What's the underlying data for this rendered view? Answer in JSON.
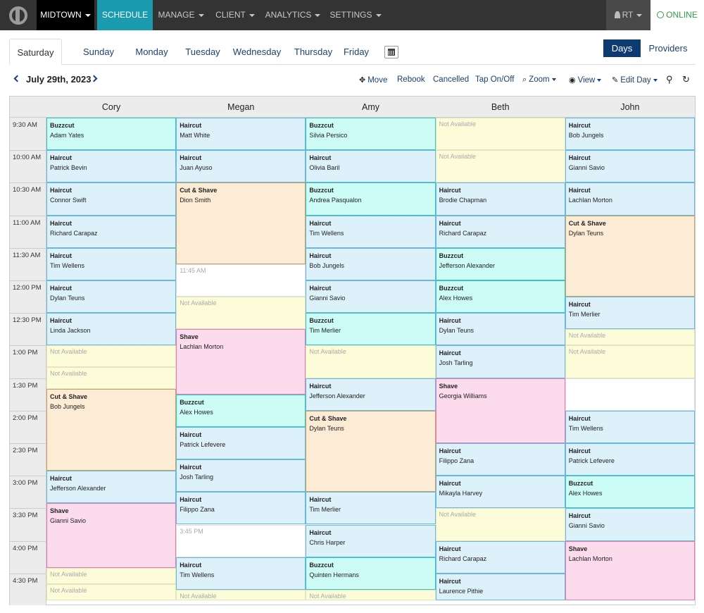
{
  "nav": {
    "location": "MIDTOWN",
    "schedule": "SCHEDULE",
    "manage": "MANAGE",
    "client": "CLIENT",
    "analytics": "ANALYTICS",
    "settings": "SETTINGS",
    "user": "RT",
    "status": "ONLINE"
  },
  "tabs": [
    "Saturday",
    "Sunday",
    "Monday",
    "Tuesday",
    "Wednesday",
    "Thursday",
    "Friday"
  ],
  "view_toggle": {
    "days": "Days",
    "providers": "Providers"
  },
  "date": "July 29th, 2023",
  "actions": {
    "move": "Move",
    "rebook": "Rebook",
    "cancelled": "Cancelled",
    "tap": "Tap On/Off",
    "zoom": "Zoom",
    "view": "View",
    "edit_day": "Edit Day"
  },
  "times": [
    "9:30 AM",
    "10:00 AM",
    "10:30 AM",
    "11:00 AM",
    "11:30 AM",
    "12:00 PM",
    "12:30 PM",
    "1:00 PM",
    "1:30 PM",
    "2:00 PM",
    "2:30 PM",
    "3:00 PM",
    "3:30 PM",
    "4:00 PM",
    "4:30 PM"
  ],
  "labels": {
    "not_available": "Not Available"
  },
  "colors": {
    "haircut": "#dcf1fa",
    "buzzcut": "#ccfcf5",
    "cut_shave": "#fcecd6",
    "shave": "#fcdcec",
    "not_available": "#fdfcd8",
    "accent": "#1a9bb0",
    "online": "#2f9e44"
  },
  "providers": [
    {
      "name": "Cory",
      "slots": [
        {
          "kind": "appt",
          "type": "buzzcut",
          "service": "Buzzcut",
          "client": "Adam Yates",
          "start": "9:30",
          "end": "10:00"
        },
        {
          "kind": "appt",
          "type": "haircut",
          "service": "Haircut",
          "client": "Patrick Bevin",
          "start": "10:00",
          "end": "10:30"
        },
        {
          "kind": "appt",
          "type": "haircut",
          "service": "Haircut",
          "client": "Connor Swift",
          "start": "10:30",
          "end": "11:00"
        },
        {
          "kind": "appt",
          "type": "haircut",
          "service": "Haircut",
          "client": "Richard Carapaz",
          "start": "11:00",
          "end": "11:30"
        },
        {
          "kind": "appt",
          "type": "haircut",
          "service": "Haircut",
          "client": "Tim Wellens",
          "start": "11:30",
          "end": "12:00"
        },
        {
          "kind": "appt",
          "type": "haircut",
          "service": "Haircut",
          "client": "Dylan Teuns",
          "start": "12:00",
          "end": "12:30"
        },
        {
          "kind": "appt",
          "type": "haircut",
          "service": "Haircut",
          "client": "Linda Jackson",
          "start": "12:30",
          "end": "13:00"
        },
        {
          "kind": "na",
          "start": "13:00",
          "end": "13:20"
        },
        {
          "kind": "na",
          "start": "13:20",
          "end": "13:40"
        },
        {
          "kind": "appt",
          "type": "cut",
          "service": "Cut & Shave",
          "client": "Bob Jungels",
          "start": "13:40",
          "end": "14:55"
        },
        {
          "kind": "appt",
          "type": "haircut",
          "service": "Haircut",
          "client": "Jefferson Alexander",
          "start": "14:55",
          "end": "15:25"
        },
        {
          "kind": "appt",
          "type": "shave",
          "service": "Shave",
          "client": "Gianni Savio",
          "start": "15:25",
          "end": "16:25"
        },
        {
          "kind": "na",
          "start": "16:25",
          "end": "16:40"
        },
        {
          "kind": "na",
          "start": "16:40",
          "end": "16:55"
        }
      ]
    },
    {
      "name": "Megan",
      "slots": [
        {
          "kind": "appt",
          "type": "haircut",
          "service": "Haircut",
          "client": "Matt White",
          "start": "9:30",
          "end": "10:00"
        },
        {
          "kind": "appt",
          "type": "haircut",
          "service": "Haircut",
          "client": "Juan Ayuso",
          "start": "10:00",
          "end": "10:30"
        },
        {
          "kind": "appt",
          "type": "cut",
          "service": "Cut & Shave",
          "client": "Dion Smith",
          "start": "10:30",
          "end": "11:45"
        },
        {
          "kind": "open",
          "label": "11:45 AM",
          "start": "11:45",
          "end": "12:15"
        },
        {
          "kind": "na",
          "start": "12:15",
          "end": "12:45"
        },
        {
          "kind": "appt",
          "type": "shave",
          "service": "Shave",
          "client": "Lachlan Morton",
          "start": "12:45",
          "end": "13:45"
        },
        {
          "kind": "appt",
          "type": "buzzcut",
          "service": "Buzzcut",
          "client": "Alex Howes",
          "start": "13:45",
          "end": "14:15"
        },
        {
          "kind": "appt",
          "type": "haircut",
          "service": "Haircut",
          "client": "Patrick Lefevere",
          "start": "14:15",
          "end": "14:45"
        },
        {
          "kind": "appt",
          "type": "haircut",
          "service": "Haircut",
          "client": "Josh Tarling",
          "start": "14:45",
          "end": "15:15"
        },
        {
          "kind": "appt",
          "type": "haircut",
          "service": "Haircut",
          "client": "Filippo Zana",
          "start": "15:15",
          "end": "15:45"
        },
        {
          "kind": "open",
          "label": "3:45 PM",
          "start": "15:45",
          "end": "16:15"
        },
        {
          "kind": "appt",
          "type": "haircut",
          "service": "Haircut",
          "client": "Tim Wellens",
          "start": "16:15",
          "end": "16:45"
        },
        {
          "kind": "na",
          "start": "16:45",
          "end": "16:55"
        }
      ]
    },
    {
      "name": "Amy",
      "slots": [
        {
          "kind": "appt",
          "type": "buzzcut",
          "service": "Buzzcut",
          "client": "Silvia Persico",
          "start": "9:30",
          "end": "10:00"
        },
        {
          "kind": "appt",
          "type": "haircut",
          "service": "Haircut",
          "client": "Olivia Baril",
          "start": "10:00",
          "end": "10:30"
        },
        {
          "kind": "appt",
          "type": "buzzcut",
          "service": "Buzzcut",
          "client": "Andrea Pasqualon",
          "start": "10:30",
          "end": "11:00"
        },
        {
          "kind": "appt",
          "type": "haircut",
          "service": "Haircut",
          "client": "Tim Wellens",
          "start": "11:00",
          "end": "11:30"
        },
        {
          "kind": "appt",
          "type": "haircut",
          "service": "Haircut",
          "client": "Bob Jungels",
          "start": "11:30",
          "end": "12:00"
        },
        {
          "kind": "appt",
          "type": "haircut",
          "service": "Haircut",
          "client": "Gianni Savio",
          "start": "12:00",
          "end": "12:30"
        },
        {
          "kind": "appt",
          "type": "buzzcut",
          "service": "Buzzcut",
          "client": "Tim Merlier",
          "start": "12:30",
          "end": "13:00"
        },
        {
          "kind": "na",
          "start": "13:00",
          "end": "13:30"
        },
        {
          "kind": "appt",
          "type": "haircut",
          "service": "Haircut",
          "client": "Jefferson Alexander",
          "start": "13:30",
          "end": "14:00"
        },
        {
          "kind": "appt",
          "type": "cut",
          "service": "Cut & Shave",
          "client": "Dylan Teuns",
          "start": "14:00",
          "end": "15:15"
        },
        {
          "kind": "appt",
          "type": "haircut",
          "service": "Haircut",
          "client": "Tim Merlier",
          "start": "15:15",
          "end": "15:45"
        },
        {
          "kind": "appt",
          "type": "haircut",
          "service": "Haircut",
          "client": "Chris Harper",
          "start": "15:45",
          "end": "16:15"
        },
        {
          "kind": "appt",
          "type": "buzzcut",
          "service": "Buzzcut",
          "client": "Quinten Hermans",
          "start": "16:15",
          "end": "16:45"
        },
        {
          "kind": "na",
          "start": "16:45",
          "end": "16:55"
        }
      ]
    },
    {
      "name": "Beth",
      "slots": [
        {
          "kind": "na",
          "start": "9:30",
          "end": "10:00"
        },
        {
          "kind": "na",
          "start": "10:00",
          "end": "10:30"
        },
        {
          "kind": "appt",
          "type": "haircut",
          "service": "Haircut",
          "client": "Brodie Chapman",
          "start": "10:30",
          "end": "11:00"
        },
        {
          "kind": "appt",
          "type": "haircut",
          "service": "Haircut",
          "client": "Richard Carapaz",
          "start": "11:00",
          "end": "11:30"
        },
        {
          "kind": "appt",
          "type": "buzzcut",
          "service": "Buzzcut",
          "client": "Jefferson Alexander",
          "start": "11:30",
          "end": "12:00"
        },
        {
          "kind": "appt",
          "type": "buzzcut",
          "service": "Buzzcut",
          "client": "Alex Howes",
          "start": "12:00",
          "end": "12:30"
        },
        {
          "kind": "appt",
          "type": "haircut",
          "service": "Haircut",
          "client": "Dylan Teuns",
          "start": "12:30",
          "end": "13:00"
        },
        {
          "kind": "appt",
          "type": "haircut",
          "service": "Haircut",
          "client": "Josh Tarling",
          "start": "13:00",
          "end": "13:30"
        },
        {
          "kind": "appt",
          "type": "shave",
          "service": "Shave",
          "client": "Georgia Williams",
          "start": "13:30",
          "end": "14:30"
        },
        {
          "kind": "appt",
          "type": "haircut",
          "service": "Haircut",
          "client": "Filippo Zana",
          "start": "14:30",
          "end": "15:00"
        },
        {
          "kind": "appt",
          "type": "haircut",
          "service": "Haircut",
          "client": "Mikayla Harvey",
          "start": "15:00",
          "end": "15:30"
        },
        {
          "kind": "na",
          "start": "15:30",
          "end": "16:00"
        },
        {
          "kind": "appt",
          "type": "haircut",
          "service": "Haircut",
          "client": "Richard Carapaz",
          "start": "16:00",
          "end": "16:30"
        },
        {
          "kind": "appt",
          "type": "haircut",
          "service": "Haircut",
          "client": "Laurence Pithie",
          "start": "16:30",
          "end": "16:55"
        }
      ]
    },
    {
      "name": "John",
      "slots": [
        {
          "kind": "appt",
          "type": "haircut",
          "service": "Haircut",
          "client": "Bob Jungels",
          "start": "9:30",
          "end": "10:00"
        },
        {
          "kind": "appt",
          "type": "haircut",
          "service": "Haircut",
          "client": "Gianni Savio",
          "start": "10:00",
          "end": "10:30"
        },
        {
          "kind": "appt",
          "type": "haircut",
          "service": "Haircut",
          "client": "Lachlan Morton",
          "start": "10:30",
          "end": "11:00"
        },
        {
          "kind": "appt",
          "type": "cut",
          "service": "Cut & Shave",
          "client": "Dylan Teuns",
          "start": "11:00",
          "end": "12:15"
        },
        {
          "kind": "appt",
          "type": "haircut",
          "service": "Haircut",
          "client": "Tim Merlier",
          "start": "12:15",
          "end": "12:45"
        },
        {
          "kind": "na",
          "start": "12:45",
          "end": "13:00"
        },
        {
          "kind": "na",
          "start": "13:00",
          "end": "13:30"
        },
        {
          "kind": "blank",
          "start": "13:30",
          "end": "14:00"
        },
        {
          "kind": "appt",
          "type": "haircut",
          "service": "Haircut",
          "client": "Tim Wellens",
          "start": "14:00",
          "end": "14:30"
        },
        {
          "kind": "appt",
          "type": "haircut",
          "service": "Haircut",
          "client": "Patrick Lefevere",
          "start": "14:30",
          "end": "15:00"
        },
        {
          "kind": "appt",
          "type": "buzzcut",
          "service": "Buzzcut",
          "client": "Alex Howes",
          "start": "15:00",
          "end": "15:30"
        },
        {
          "kind": "appt",
          "type": "haircut",
          "service": "Haircut",
          "client": "Gianni Savio",
          "start": "15:30",
          "end": "16:00"
        },
        {
          "kind": "appt",
          "type": "shave",
          "service": "Shave",
          "client": "Lachlan Morton",
          "start": "16:00",
          "end": "16:55"
        }
      ]
    }
  ]
}
